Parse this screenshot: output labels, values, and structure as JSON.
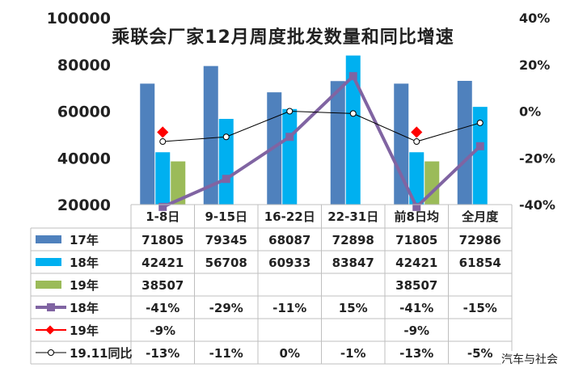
{
  "chart_data": {
    "type": "bar",
    "title": "乘联会厂家12月周度批发数量和同比增速",
    "categories": [
      "1-8日",
      "9-15日",
      "16-22日",
      "22-31日",
      "前8日均",
      "全月度"
    ],
    "y_left": {
      "ticks": [
        "100000",
        "80000",
        "60000",
        "40000",
        "20000"
      ],
      "min": 20000,
      "max": 100000
    },
    "y_right": {
      "ticks": [
        "40%",
        "20%",
        "0%",
        "-20%",
        "-40%"
      ],
      "min": -40,
      "max": 40
    },
    "bar_series": [
      {
        "name": "17年",
        "color": "#4F81BD",
        "values": [
          71805,
          79345,
          68087,
          72898,
          71805,
          72986
        ]
      },
      {
        "name": "18年",
        "color": "#00B0F0",
        "values": [
          42421,
          56708,
          60933,
          83847,
          42421,
          61854
        ]
      },
      {
        "name": "19年",
        "color": "#9BBB59",
        "values": [
          38507,
          null,
          null,
          null,
          38507,
          null
        ]
      }
    ],
    "line_series": [
      {
        "name": "18年",
        "color": "#8064A2",
        "values": [
          -41,
          -29,
          -11,
          15,
          -41,
          -15
        ]
      },
      {
        "name": "19年",
        "color": "#FF0000",
        "values": [
          -9,
          null,
          null,
          null,
          -9,
          null
        ]
      },
      {
        "name": "19.11同比",
        "color": "#000000",
        "values": [
          -13,
          -11,
          0,
          -1,
          -13,
          -5
        ]
      }
    ],
    "table": {
      "rows": [
        {
          "label": "17年",
          "cells": [
            "71805",
            "79345",
            "68087",
            "72898",
            "71805",
            "72986"
          ]
        },
        {
          "label": "18年",
          "cells": [
            "42421",
            "56708",
            "60933",
            "83847",
            "42421",
            "61854"
          ]
        },
        {
          "label": "19年",
          "cells": [
            "38507",
            "",
            "",
            "",
            "38507",
            ""
          ]
        },
        {
          "label": "18年",
          "cells": [
            "-41%",
            "-29%",
            "-11%",
            "15%",
            "-41%",
            "-15%"
          ]
        },
        {
          "label": "19年",
          "cells": [
            "-9%",
            "",
            "",
            "",
            "-9%",
            ""
          ]
        },
        {
          "label": "19.11同比",
          "cells": [
            "-13%",
            "-11%",
            "0%",
            "-1%",
            "-13%",
            "-5%"
          ]
        }
      ]
    }
  },
  "watermark": "汽车与社会"
}
